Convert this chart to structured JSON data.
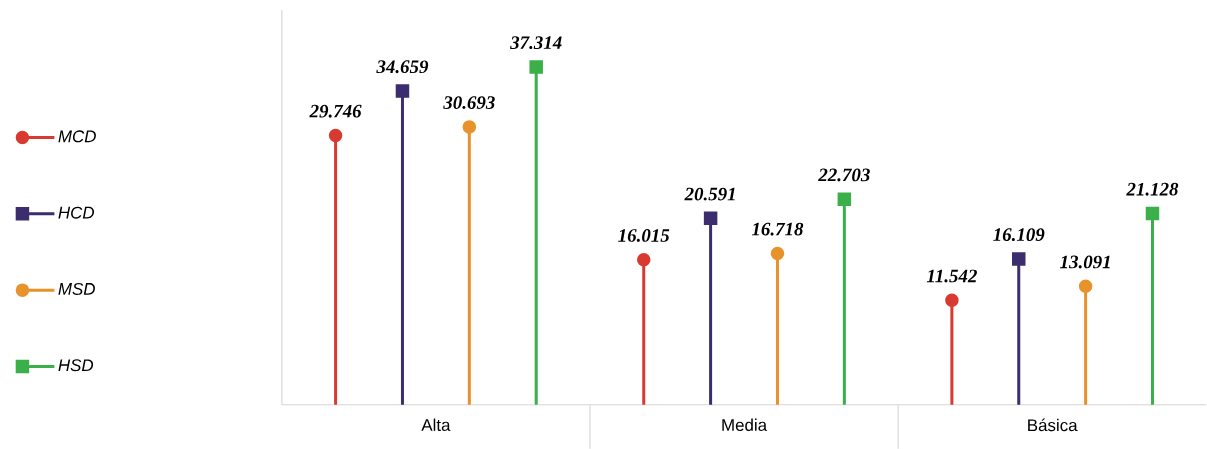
{
  "chart_data": {
    "type": "lollipop",
    "categories": [
      "Alta",
      "Media",
      "Básica"
    ],
    "series": [
      {
        "name": "MCD",
        "color": "#d93a30",
        "marker": "circle",
        "values": [
          29746,
          16015,
          11542
        ],
        "value_labels": [
          "29.746",
          "16.015",
          "11.542"
        ]
      },
      {
        "name": "HCD",
        "color": "#3b2d6e",
        "marker": "square",
        "values": [
          34659,
          20591,
          16109
        ],
        "value_labels": [
          "34.659",
          "20.591",
          "16.109"
        ]
      },
      {
        "name": "MSD",
        "color": "#e8922c",
        "marker": "circle",
        "values": [
          30693,
          16718,
          13091
        ],
        "value_labels": [
          "30.693",
          "16.718",
          "13.091"
        ]
      },
      {
        "name": "HSD",
        "color": "#3bb04a",
        "marker": "square",
        "values": [
          37314,
          22703,
          21128
        ],
        "value_labels": [
          "37.314",
          "22.703",
          "21.128"
        ]
      }
    ],
    "legend": "left"
  }
}
